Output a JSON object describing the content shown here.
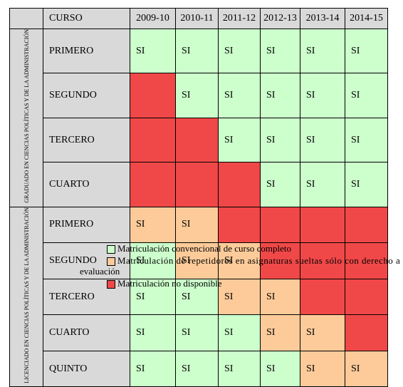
{
  "table": {
    "header": [
      "CURSO",
      "2009-10",
      "2010-11",
      "2011-12",
      "2012-13",
      "2013-14",
      "2014-15"
    ],
    "groups": [
      {
        "label": "GRADUADO EN CIENCIAS POLÍTICAS Y DE LA ADMINISTRACIÓN",
        "rows": [
          {
            "course": "PRIMERO",
            "cells": [
              {
                "s": "g",
                "t": "SI"
              },
              {
                "s": "g",
                "t": "SI"
              },
              {
                "s": "g",
                "t": "SI"
              },
              {
                "s": "g",
                "t": "SI"
              },
              {
                "s": "g",
                "t": "SI"
              },
              {
                "s": "g",
                "t": "SI"
              }
            ]
          },
          {
            "course": "SEGUNDO",
            "cells": [
              {
                "s": "r",
                "t": ""
              },
              {
                "s": "g",
                "t": "SI"
              },
              {
                "s": "g",
                "t": "SI"
              },
              {
                "s": "g",
                "t": "SI"
              },
              {
                "s": "g",
                "t": "SI"
              },
              {
                "s": "g",
                "t": "SI"
              }
            ]
          },
          {
            "course": "TERCERO",
            "cells": [
              {
                "s": "r",
                "t": ""
              },
              {
                "s": "r",
                "t": ""
              },
              {
                "s": "g",
                "t": "SI"
              },
              {
                "s": "g",
                "t": "SI"
              },
              {
                "s": "g",
                "t": "SI"
              },
              {
                "s": "g",
                "t": "SI"
              }
            ]
          },
          {
            "course": "CUARTO",
            "cells": [
              {
                "s": "r",
                "t": ""
              },
              {
                "s": "r",
                "t": ""
              },
              {
                "s": "r",
                "t": ""
              },
              {
                "s": "g",
                "t": "SI"
              },
              {
                "s": "g",
                "t": "SI"
              },
              {
                "s": "g",
                "t": "SI"
              }
            ]
          }
        ]
      },
      {
        "label": "LICENCIADO EN CIENCIAS POLÍTICAS Y DE LA ADMINISTRACIÓN",
        "rows": [
          {
            "course": "PRIMERO",
            "cells": [
              {
                "s": "o",
                "t": "SI"
              },
              {
                "s": "o",
                "t": "SI"
              },
              {
                "s": "r",
                "t": ""
              },
              {
                "s": "r",
                "t": ""
              },
              {
                "s": "r",
                "t": ""
              },
              {
                "s": "r",
                "t": ""
              }
            ]
          },
          {
            "course": "SEGUNDO",
            "cells": [
              {
                "s": "g",
                "t": "SI"
              },
              {
                "s": "o",
                "t": "SI"
              },
              {
                "s": "o",
                "t": "SI"
              },
              {
                "s": "r",
                "t": ""
              },
              {
                "s": "r",
                "t": ""
              },
              {
                "s": "r",
                "t": ""
              }
            ]
          },
          {
            "course": "TERCERO",
            "cells": [
              {
                "s": "g",
                "t": "SI"
              },
              {
                "s": "g",
                "t": "SI"
              },
              {
                "s": "o",
                "t": "SI"
              },
              {
                "s": "o",
                "t": "SI"
              },
              {
                "s": "r",
                "t": ""
              },
              {
                "s": "r",
                "t": ""
              }
            ]
          },
          {
            "course": "CUARTO",
            "cells": [
              {
                "s": "g",
                "t": "SI"
              },
              {
                "s": "g",
                "t": "SI"
              },
              {
                "s": "g",
                "t": "SI"
              },
              {
                "s": "o",
                "t": "SI"
              },
              {
                "s": "o",
                "t": "SI"
              },
              {
                "s": "r",
                "t": ""
              }
            ]
          },
          {
            "course": "QUINTO",
            "cells": [
              {
                "s": "g",
                "t": "SI"
              },
              {
                "s": "g",
                "t": "SI"
              },
              {
                "s": "g",
                "t": "SI"
              },
              {
                "s": "g",
                "t": "SI"
              },
              {
                "s": "o",
                "t": "SI"
              },
              {
                "s": "o",
                "t": "SI"
              }
            ]
          }
        ]
      }
    ]
  },
  "legend": {
    "complete": "Matriculación convencional de curso completo",
    "repeaters_line1": "Matriculación de repetidores en asignaturas sueltas sólo con derecho a",
    "repeaters_line2": "evaluación",
    "unavailable": "Matriculación no disponible"
  },
  "colors": {
    "green": "#ccffcc",
    "orange": "#fdcb9a",
    "red": "#f04848",
    "header_gray": "#d9d9d9"
  }
}
